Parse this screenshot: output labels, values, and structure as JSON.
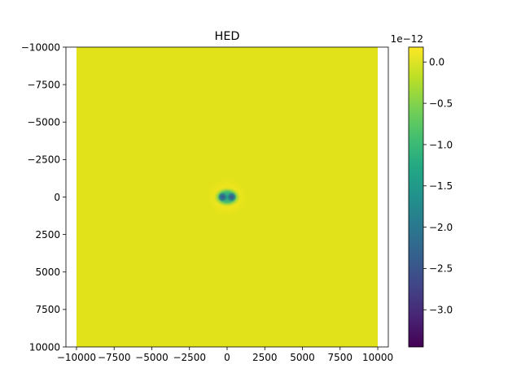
{
  "chart_data": {
    "type": "heatmap",
    "title": "HED",
    "xlabel": "",
    "ylabel": "",
    "xlim": [
      -10700,
      10700
    ],
    "ylim": [
      10000,
      -10000
    ],
    "data_extent_x": [
      -10000,
      10000
    ],
    "data_extent_y": [
      -10000,
      10000
    ],
    "x_ticks": [
      "−10000",
      "−7500",
      "−5000",
      "−2500",
      "0",
      "2500",
      "5000",
      "7500",
      "10000"
    ],
    "x_tick_values": [
      -10000,
      -7500,
      -5000,
      -2500,
      0,
      2500,
      5000,
      7500,
      10000
    ],
    "y_ticks": [
      "−10000",
      "−7500",
      "−5000",
      "−2500",
      "0",
      "2500",
      "5000",
      "7500",
      "10000"
    ],
    "y_tick_values": [
      -10000,
      -7500,
      -5000,
      -2500,
      0,
      2500,
      5000,
      7500,
      10000
    ],
    "colormap": "viridis",
    "colorbar": {
      "range": [
        -3.45e-12,
        1.8e-13
      ],
      "offset_label": "1e−12",
      "tick_labels": [
        "0.0",
        "−0.5",
        "−1.0",
        "−1.5",
        "−2.0",
        "−2.5",
        "−3.0"
      ],
      "tick_values": [
        0.0,
        -0.5,
        -1.0,
        -1.5,
        -2.0,
        -2.5,
        -3.0
      ]
    },
    "background_value": 5e-14,
    "features": [
      {
        "name": "dipole-lobe-left",
        "x": -300,
        "y": 0,
        "min_value": -3.4e-12
      },
      {
        "name": "dipole-lobe-right",
        "x": 300,
        "y": 0,
        "min_value": -3.4e-12
      },
      {
        "name": "positive-halo",
        "x": 0,
        "y": 0,
        "radius": 1500,
        "max_value": 1.8e-13
      }
    ],
    "grid": false,
    "legend": "none"
  }
}
